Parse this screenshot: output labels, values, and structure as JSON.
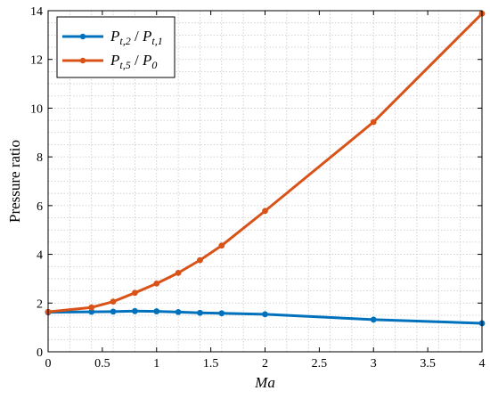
{
  "chart_data": {
    "type": "line",
    "xlabel": "Ma",
    "ylabel": "Pressure ratio",
    "xlim": [
      0,
      4
    ],
    "ylim": [
      0,
      14
    ],
    "x_ticks": [
      "0",
      "0.5",
      "1",
      "1.5",
      "2",
      "2.5",
      "3",
      "3.5",
      "4"
    ],
    "y_ticks": [
      "0",
      "2",
      "4",
      "6",
      "8",
      "10",
      "12",
      "14"
    ],
    "grid": true,
    "legend_position": "top-left",
    "series": [
      {
        "name": "P t,2 / P t,1",
        "name_parts": {
          "p1": "P",
          "s1": "t,2",
          "slash": " / ",
          "p2": "P",
          "s2": "t,1"
        },
        "color": "#0072bd",
        "x": [
          0,
          0.4,
          0.6,
          0.8,
          1.0,
          1.2,
          1.4,
          1.6,
          2.0,
          3.0,
          4.0
        ],
        "y": [
          1.62,
          1.64,
          1.65,
          1.67,
          1.66,
          1.63,
          1.6,
          1.58,
          1.54,
          1.32,
          1.17
        ]
      },
      {
        "name": "P t,5 / P 0",
        "name_parts": {
          "p1": "P",
          "s1": "t,5",
          "slash": " / ",
          "p2": "P",
          "s2": "0"
        },
        "color": "#d95319",
        "x": [
          0,
          0.4,
          0.6,
          0.8,
          1.0,
          1.2,
          1.4,
          1.6,
          2.0,
          3.0,
          4.0
        ],
        "y": [
          1.64,
          1.82,
          2.06,
          2.42,
          2.8,
          3.24,
          3.76,
          4.36,
          5.78,
          9.43,
          13.88
        ]
      }
    ]
  }
}
